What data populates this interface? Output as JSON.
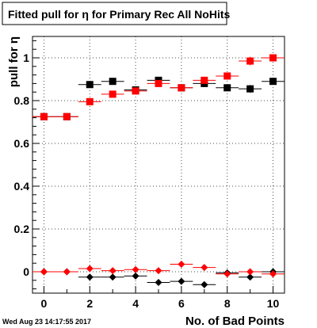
{
  "title": "Fitted pull for  η for Primary Rec All NoHits",
  "footer_timestamp": "Wed Aug 23 14:17:55 2017",
  "chart_data": {
    "type": "scatter",
    "title": "Fitted pull for  η for Primary Rec All NoHits",
    "xlabel": "No. of Bad Points",
    "ylabel": "pull for  η",
    "xlim": [
      -0.5,
      10.5
    ],
    "ylim": [
      -0.1,
      1.1
    ],
    "xticks": [
      0,
      2,
      4,
      6,
      8,
      10
    ],
    "yticks": [
      0,
      0.2,
      0.4,
      0.6,
      0.8,
      1
    ],
    "ytick_labels": [
      "0",
      "0.2",
      "0.4",
      "0.6",
      "0.8",
      "1"
    ],
    "grid": true,
    "x": [
      0,
      1,
      2,
      3,
      4,
      5,
      6,
      7,
      8,
      9,
      10
    ],
    "series": [
      {
        "color": "#000000",
        "marker": "square",
        "values": [
          0.725,
          0.725,
          0.875,
          0.89,
          0.85,
          0.895,
          0.86,
          0.88,
          0.86,
          0.855,
          0.89
        ],
        "errors": [
          0,
          0,
          0.012,
          0.015,
          0.012,
          0.016,
          0.012,
          0.015,
          0.015,
          0.018,
          0.015
        ]
      },
      {
        "color": "#ff0000",
        "marker": "square",
        "values": [
          0.725,
          0.725,
          0.795,
          0.83,
          0.845,
          0.88,
          0.86,
          0.895,
          0.915,
          0.985,
          1.0
        ],
        "errors": [
          0,
          0,
          0.012,
          0.014,
          0.012,
          0.016,
          0.012,
          0.014,
          0.016,
          0.02,
          0.015
        ]
      },
      {
        "color": "#000000",
        "marker": "diamond",
        "values": [
          0.0,
          0.0,
          -0.025,
          -0.025,
          -0.02,
          -0.05,
          -0.045,
          -0.06,
          -0.005,
          -0.025,
          0.0
        ],
        "errors": [
          0,
          0,
          0.01,
          0.01,
          0.01,
          0.012,
          0.012,
          0.012,
          0.01,
          0.012,
          0.01
        ]
      },
      {
        "color": "#ff0000",
        "marker": "diamond",
        "values": [
          0.0,
          0.0,
          0.015,
          0.005,
          0.01,
          0.005,
          0.035,
          0.02,
          -0.01,
          0.0,
          -0.01
        ],
        "errors": [
          0,
          0,
          0.008,
          0.008,
          0.008,
          0.008,
          0.01,
          0.008,
          0.008,
          0.008,
          0.008
        ]
      }
    ]
  }
}
